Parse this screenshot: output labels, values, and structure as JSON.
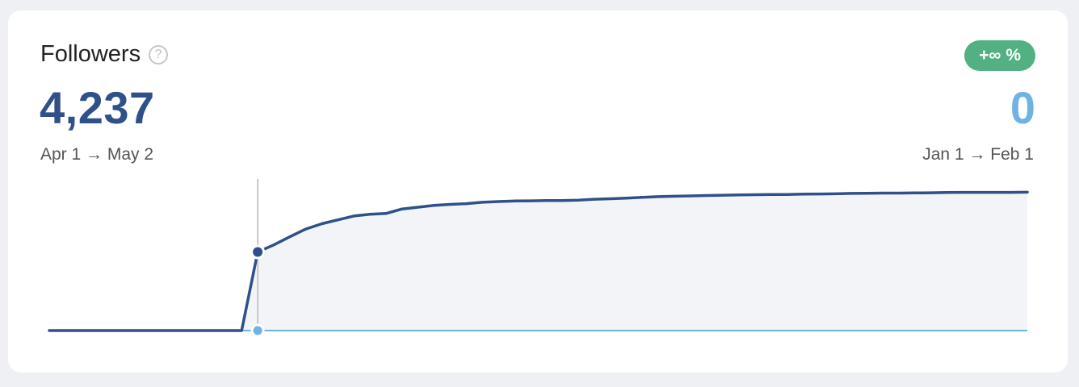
{
  "widget": {
    "title": "Followers",
    "help_icon": "question-circle-icon",
    "help_symbol": "?",
    "badge": "+∞ %",
    "value": "4,237",
    "compare_value": "0",
    "range": "Apr 1 → May 2",
    "compare_range": "Jan 1 → Feb 1"
  },
  "colors": {
    "primary": "#2f5089",
    "compare": "#6eb3e2",
    "badge": "#52b082",
    "area_fill": "#f3f4f8"
  },
  "chart_data": {
    "type": "area",
    "xlabel": "",
    "ylabel": "",
    "grid": false,
    "ylim": [
      0,
      4300
    ],
    "hover_index": 13,
    "series": [
      {
        "values": [
          0,
          0,
          0,
          0,
          0,
          0,
          0,
          0,
          0,
          0,
          0,
          0,
          0,
          2230,
          2430,
          2660,
          2880,
          3030,
          3140,
          3250,
          3300,
          3320,
          3450,
          3500,
          3550,
          3580,
          3600,
          3640,
          3660,
          3675,
          3680,
          3690,
          3690,
          3700,
          3725,
          3740,
          3755,
          3780,
          3800,
          3810,
          3820,
          3830,
          3840,
          3850,
          3855,
          3860,
          3860,
          3870,
          3875,
          3880,
          3890,
          3895,
          3900,
          3900,
          3905,
          3910,
          3915,
          3920,
          3920,
          3920,
          3920,
          3925
        ]
      },
      {
        "values": [
          0,
          0,
          0,
          0,
          0,
          0,
          0,
          0,
          0,
          0,
          0,
          0,
          0,
          0,
          0,
          0,
          0,
          0,
          0,
          0,
          0,
          0,
          0,
          0,
          0,
          0,
          0,
          0,
          0,
          0,
          0,
          0,
          0,
          0,
          0,
          0,
          0,
          0,
          0,
          0,
          0,
          0,
          0,
          0,
          0,
          0,
          0,
          0,
          0,
          0,
          0,
          0,
          0,
          0,
          0,
          0,
          0,
          0,
          0,
          0,
          0,
          0
        ]
      }
    ]
  }
}
